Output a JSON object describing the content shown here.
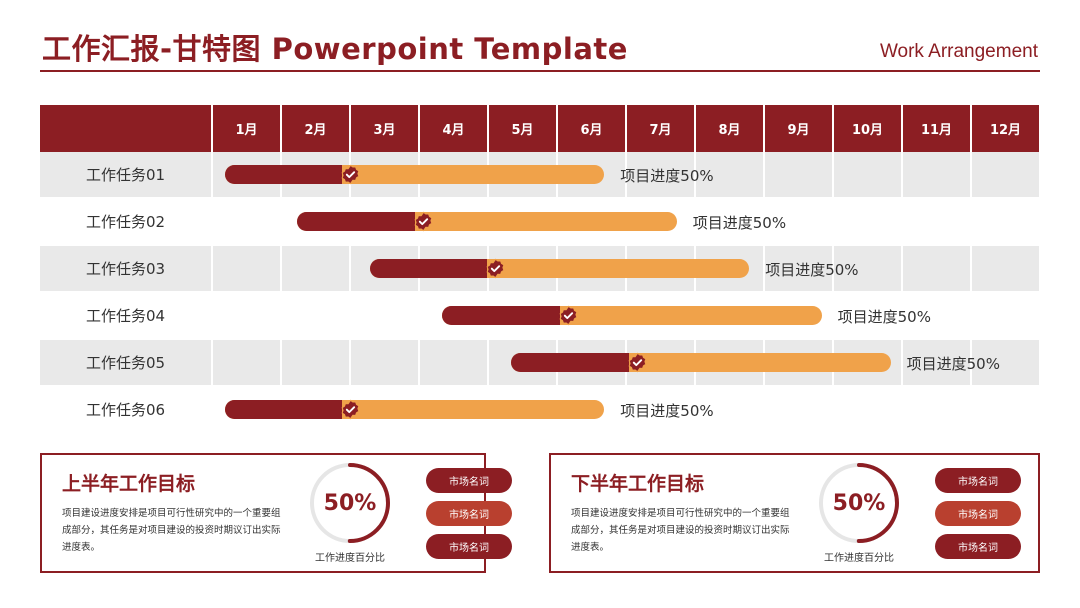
{
  "header": {
    "title": "工作汇报-甘特图 Powerpoint Template",
    "subtitle": "Work Arrangement"
  },
  "colors": {
    "primary": "#8c1e23",
    "secondary": "#f0a24a",
    "row_shade": "#e9e9e9",
    "pill_mid": "#b9402f"
  },
  "gantt": {
    "months": [
      "1月",
      "2月",
      "3月",
      "4月",
      "5月",
      "6月",
      "7月",
      "8月",
      "9月",
      "10月",
      "11月",
      "12月"
    ],
    "tasks": [
      {
        "label": "工作任务01",
        "start_month": 1.2,
        "end_month": 6.7,
        "progress_percent": 50,
        "progress_text": "项目进度50%"
      },
      {
        "label": "工作任务02",
        "start_month": 2.25,
        "end_month": 7.75,
        "progress_percent": 50,
        "progress_text": "项目进度50%"
      },
      {
        "label": "工作任务03",
        "start_month": 3.3,
        "end_month": 8.8,
        "progress_percent": 50,
        "progress_text": "项目进度50%"
      },
      {
        "label": "工作任务04",
        "start_month": 4.35,
        "end_month": 9.85,
        "progress_percent": 50,
        "progress_text": "项目进度50%"
      },
      {
        "label": "工作任务05",
        "start_month": 5.35,
        "end_month": 10.85,
        "progress_percent": 50,
        "progress_text": "项目进度50%"
      },
      {
        "label": "工作任务06",
        "start_month": 1.2,
        "end_month": 6.7,
        "progress_percent": 50,
        "progress_text": "项目进度50%"
      }
    ]
  },
  "panels": [
    {
      "title": "上半年工作目标",
      "description": "项目建设进度安排是项目可行性研究中的一个重要组成部分，其任务是对项目建设的投资时期议订出实际进度表。",
      "progress_value": 50,
      "progress_text": "50%",
      "progress_label": "工作进度百分比",
      "tags": [
        "市场名词",
        "市场名词",
        "市场名词"
      ]
    },
    {
      "title": "下半年工作目标",
      "description": "项目建设进度安排是项目可行性研究中的一个重要组成部分，其任务是对项目建设的投资时期议订出实际进度表。",
      "progress_value": 50,
      "progress_text": "50%",
      "progress_label": "工作进度百分比",
      "tags": [
        "市场名词",
        "市场名词",
        "市场名词"
      ]
    }
  ]
}
